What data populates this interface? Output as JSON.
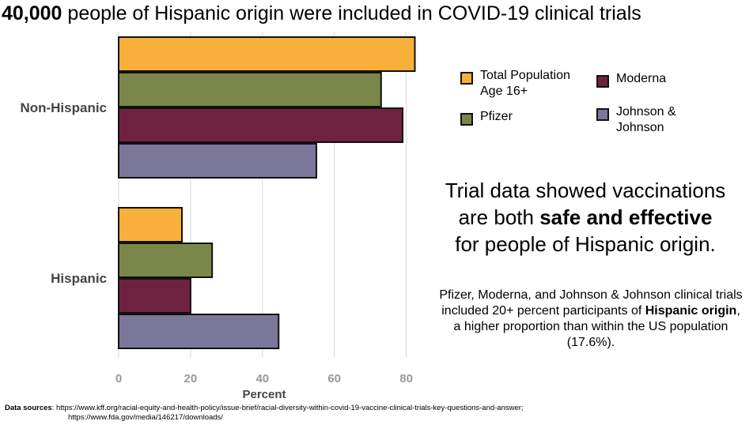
{
  "headline": {
    "bold": "40,000",
    "rest": " people of Hispanic origin were included in COVID-19 clinical trials"
  },
  "chart_data": {
    "type": "bar",
    "orientation": "horizontal",
    "categories": [
      "Non-Hispanic",
      "Hispanic"
    ],
    "series": [
      {
        "name": "Total Population Age 16+",
        "color": "#F9B03A",
        "values": [
          82.4,
          17.6
        ]
      },
      {
        "name": "Pfizer",
        "color": "#7A8748",
        "values": [
          73,
          26
        ]
      },
      {
        "name": "Moderna",
        "color": "#6E2240",
        "values": [
          79,
          20
        ]
      },
      {
        "name": "Johnson & Johnson",
        "color": "#7A7799",
        "values": [
          55,
          44.5
        ]
      }
    ],
    "xlabel": "Percent",
    "xlim": [
      0,
      90
    ],
    "xticks": [
      "0",
      "20",
      "40",
      "60",
      "80"
    ],
    "grid": true,
    "legend_position": "right"
  },
  "legend": {
    "total": "Total Population\nAge 16+",
    "pfizer": "Pfizer",
    "moderna": "Moderna",
    "jnj": "Johnson &\nJohnson"
  },
  "callout": {
    "line1": "Trial data showed vaccinations",
    "line2_pre": "are both ",
    "line2_bold": "safe and effective",
    "line3": "for people of Hispanic origin."
  },
  "note": {
    "pre": "Pfizer, Moderna, and Johnson & Johnson clinical trials included 20+ percent participants of ",
    "bold": "Hispanic origin",
    "post": ", a higher proportion than within the US population (17.6%)."
  },
  "sources": {
    "label": "Data sources",
    "line1": ": https://www.kff.org/racial-equity-and-health-policy/issue-brief/racial-diversity-within-covid-19-vaccine-clinical-trials-key-questions-and-answer;",
    "line2": "https://www.fda.gov/media/146217/downloads/"
  }
}
